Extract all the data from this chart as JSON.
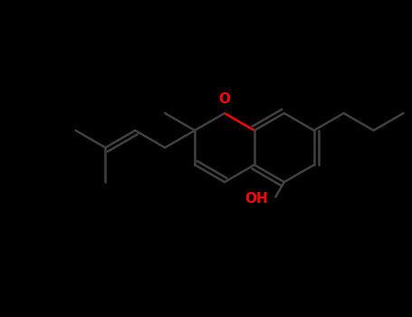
{
  "bg_color": "#000000",
  "bond_color": "#404040",
  "o_color": "#ff0000",
  "lw": 1.8,
  "figsize": [
    4.55,
    3.5
  ],
  "dpi": 100,
  "o_label": "O",
  "oh_label": "OH",
  "o_fontsize": 11,
  "oh_fontsize": 11
}
